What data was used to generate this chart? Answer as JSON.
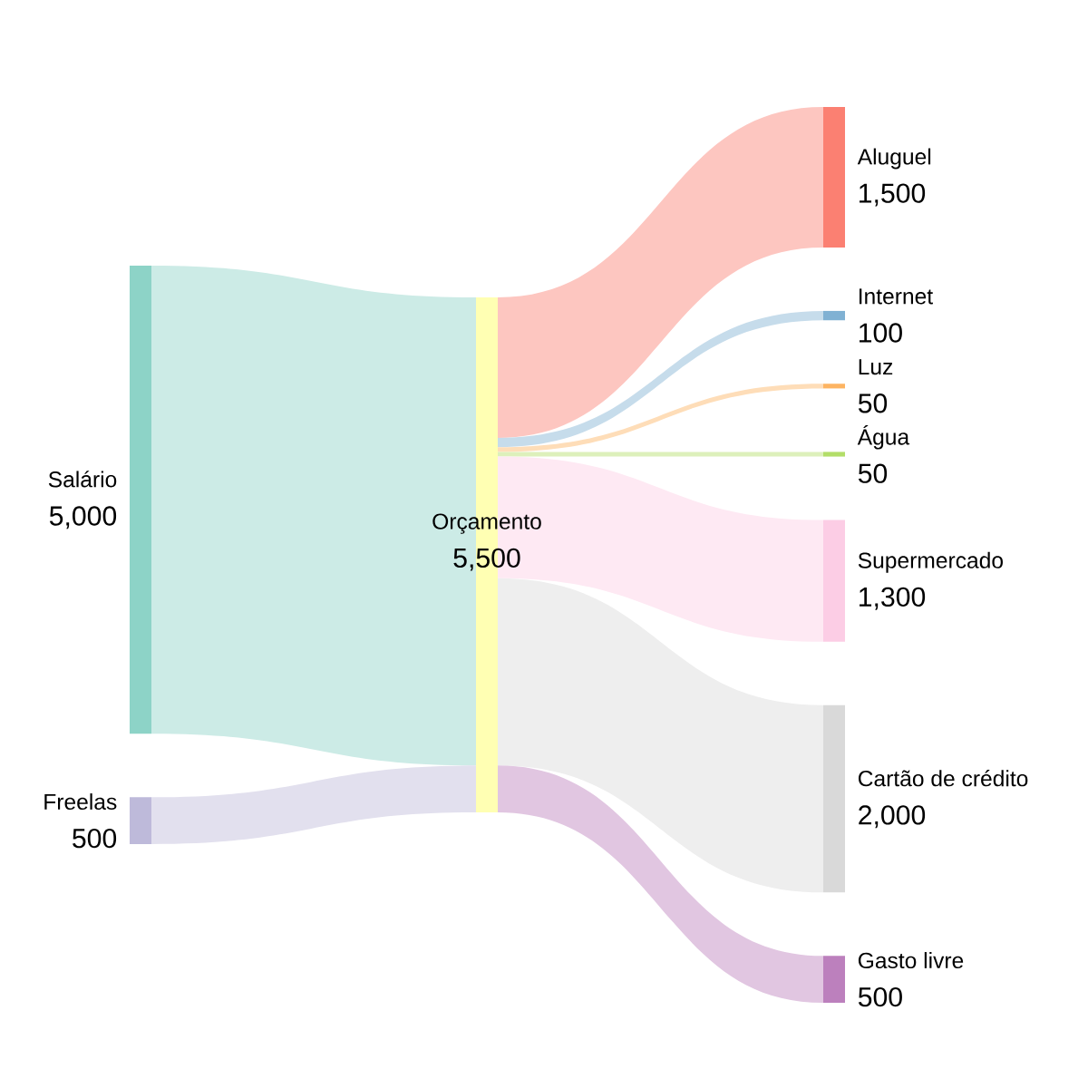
{
  "chart_data": {
    "type": "other",
    "categories": [
      "Salário",
      "Freelas",
      "Orçamento",
      "Aluguel",
      "Internet",
      "Luz",
      "Água",
      "Supermercado",
      "Cartão de crédito",
      "Gasto livre"
    ],
    "values": [
      5000,
      500,
      5500,
      1500,
      100,
      50,
      50,
      1300,
      2000,
      500
    ],
    "value_labels": [
      "5,000",
      "500",
      "5,500",
      "1,500",
      "100",
      "50",
      "50",
      "1,300",
      "2,000",
      "500"
    ],
    "colors": [
      "#8dd3c7",
      "#bebada",
      "#ffffb3",
      "#fb8072",
      "#80b1d3",
      "#fdb462",
      "#b3de69",
      "#fccde5",
      "#d9d9d9",
      "#bc80bd"
    ]
  }
}
